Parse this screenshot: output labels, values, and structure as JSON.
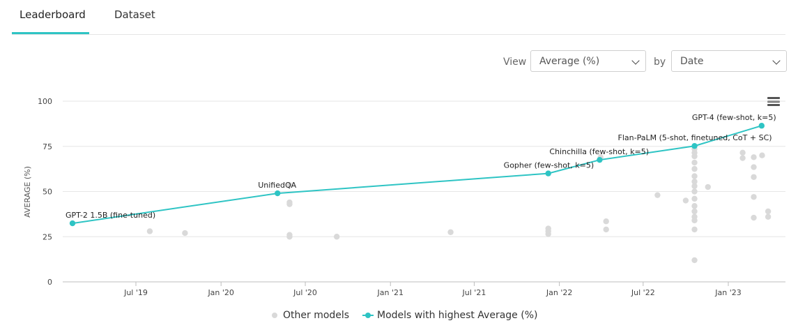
{
  "tabs": [
    {
      "label": "Leaderboard",
      "active": true
    },
    {
      "label": "Dataset",
      "active": false
    }
  ],
  "controls": {
    "view_label": "View",
    "view_value": "Average (%)",
    "by_label": "by",
    "by_value": "Date"
  },
  "colors": {
    "accent": "#2ec4c4",
    "other": "#d9d9d9"
  },
  "chart_data": {
    "type": "scatter",
    "ylabel": "AVERAGE (%)",
    "ylim": [
      0,
      100
    ],
    "y_ticks": [
      0,
      25,
      50,
      75,
      100
    ],
    "x_ticks": [
      {
        "label": "Jul '19",
        "date": "2019-07-01"
      },
      {
        "label": "Jan '20",
        "date": "2020-01-01"
      },
      {
        "label": "Jul '20",
        "date": "2020-07-01"
      },
      {
        "label": "Jan '21",
        "date": "2021-01-01"
      },
      {
        "label": "Jul '21",
        "date": "2021-07-01"
      },
      {
        "label": "Jan '22",
        "date": "2022-01-01"
      },
      {
        "label": "Jul '22",
        "date": "2022-07-01"
      },
      {
        "label": "Jan '23",
        "date": "2023-01-01"
      }
    ],
    "series": [
      {
        "name": "Models with highest Average (%)",
        "points": [
          {
            "date": "2019-02-14",
            "y": 32.4,
            "label": "GPT-2 1.5B (fine-tuned)"
          },
          {
            "date": "2020-05-02",
            "y": 49.0,
            "label": "UnifiedQA"
          },
          {
            "date": "2021-12-08",
            "y": 60.0,
            "label": "Gopher (few-shot, k=5)"
          },
          {
            "date": "2022-03-29",
            "y": 67.5,
            "label": "Chinchilla (few-shot, k=5)"
          },
          {
            "date": "2022-10-20",
            "y": 75.2,
            "label": "Flan-PaLM (5-shot, finetuned, CoT + SC)"
          },
          {
            "date": "2023-03-14",
            "y": 86.4,
            "label": "GPT-4 (few-shot, k=5)"
          }
        ]
      },
      {
        "name": "Other models",
        "points": [
          {
            "date": "2019-07-31",
            "y": 28.0
          },
          {
            "date": "2019-10-15",
            "y": 27.0
          },
          {
            "date": "2020-05-28",
            "y": 53.5
          },
          {
            "date": "2020-05-28",
            "y": 44.0
          },
          {
            "date": "2020-05-28",
            "y": 43.0
          },
          {
            "date": "2020-05-28",
            "y": 26.0
          },
          {
            "date": "2020-05-28",
            "y": 25.0
          },
          {
            "date": "2020-09-07",
            "y": 25.0
          },
          {
            "date": "2021-05-11",
            "y": 27.5
          },
          {
            "date": "2021-12-08",
            "y": 29.5
          },
          {
            "date": "2021-12-08",
            "y": 28.0
          },
          {
            "date": "2021-12-08",
            "y": 26.5
          },
          {
            "date": "2022-03-31",
            "y": 69.0
          },
          {
            "date": "2022-04-12",
            "y": 33.5
          },
          {
            "date": "2022-04-12",
            "y": 29.0
          },
          {
            "date": "2022-08-01",
            "y": 48.0
          },
          {
            "date": "2022-10-01",
            "y": 45.0
          },
          {
            "date": "2022-10-20",
            "y": 73.5
          },
          {
            "date": "2022-10-20",
            "y": 71.5
          },
          {
            "date": "2022-10-20",
            "y": 69.5
          },
          {
            "date": "2022-10-20",
            "y": 66.0
          },
          {
            "date": "2022-10-20",
            "y": 62.5
          },
          {
            "date": "2022-10-20",
            "y": 58.5
          },
          {
            "date": "2022-10-20",
            "y": 55.5
          },
          {
            "date": "2022-10-20",
            "y": 53.0
          },
          {
            "date": "2022-10-20",
            "y": 50.0
          },
          {
            "date": "2022-10-20",
            "y": 46.0
          },
          {
            "date": "2022-10-20",
            "y": 42.0
          },
          {
            "date": "2022-10-20",
            "y": 39.0
          },
          {
            "date": "2022-10-20",
            "y": 36.0
          },
          {
            "date": "2022-10-20",
            "y": 34.0
          },
          {
            "date": "2022-10-20",
            "y": 29.0
          },
          {
            "date": "2022-10-20",
            "y": 12.0
          },
          {
            "date": "2022-11-18",
            "y": 52.5
          },
          {
            "date": "2023-02-01",
            "y": 71.5
          },
          {
            "date": "2023-02-01",
            "y": 68.5
          },
          {
            "date": "2023-02-25",
            "y": 69.0
          },
          {
            "date": "2023-02-25",
            "y": 63.5
          },
          {
            "date": "2023-02-25",
            "y": 58.0
          },
          {
            "date": "2023-02-25",
            "y": 47.0
          },
          {
            "date": "2023-02-25",
            "y": 35.5
          },
          {
            "date": "2023-03-15",
            "y": 70.0
          },
          {
            "date": "2023-03-28",
            "y": 39.0
          },
          {
            "date": "2023-03-28",
            "y": 36.0
          }
        ]
      }
    ],
    "legend": [
      "Other models",
      "Models with highest Average (%)"
    ],
    "grid": true
  }
}
